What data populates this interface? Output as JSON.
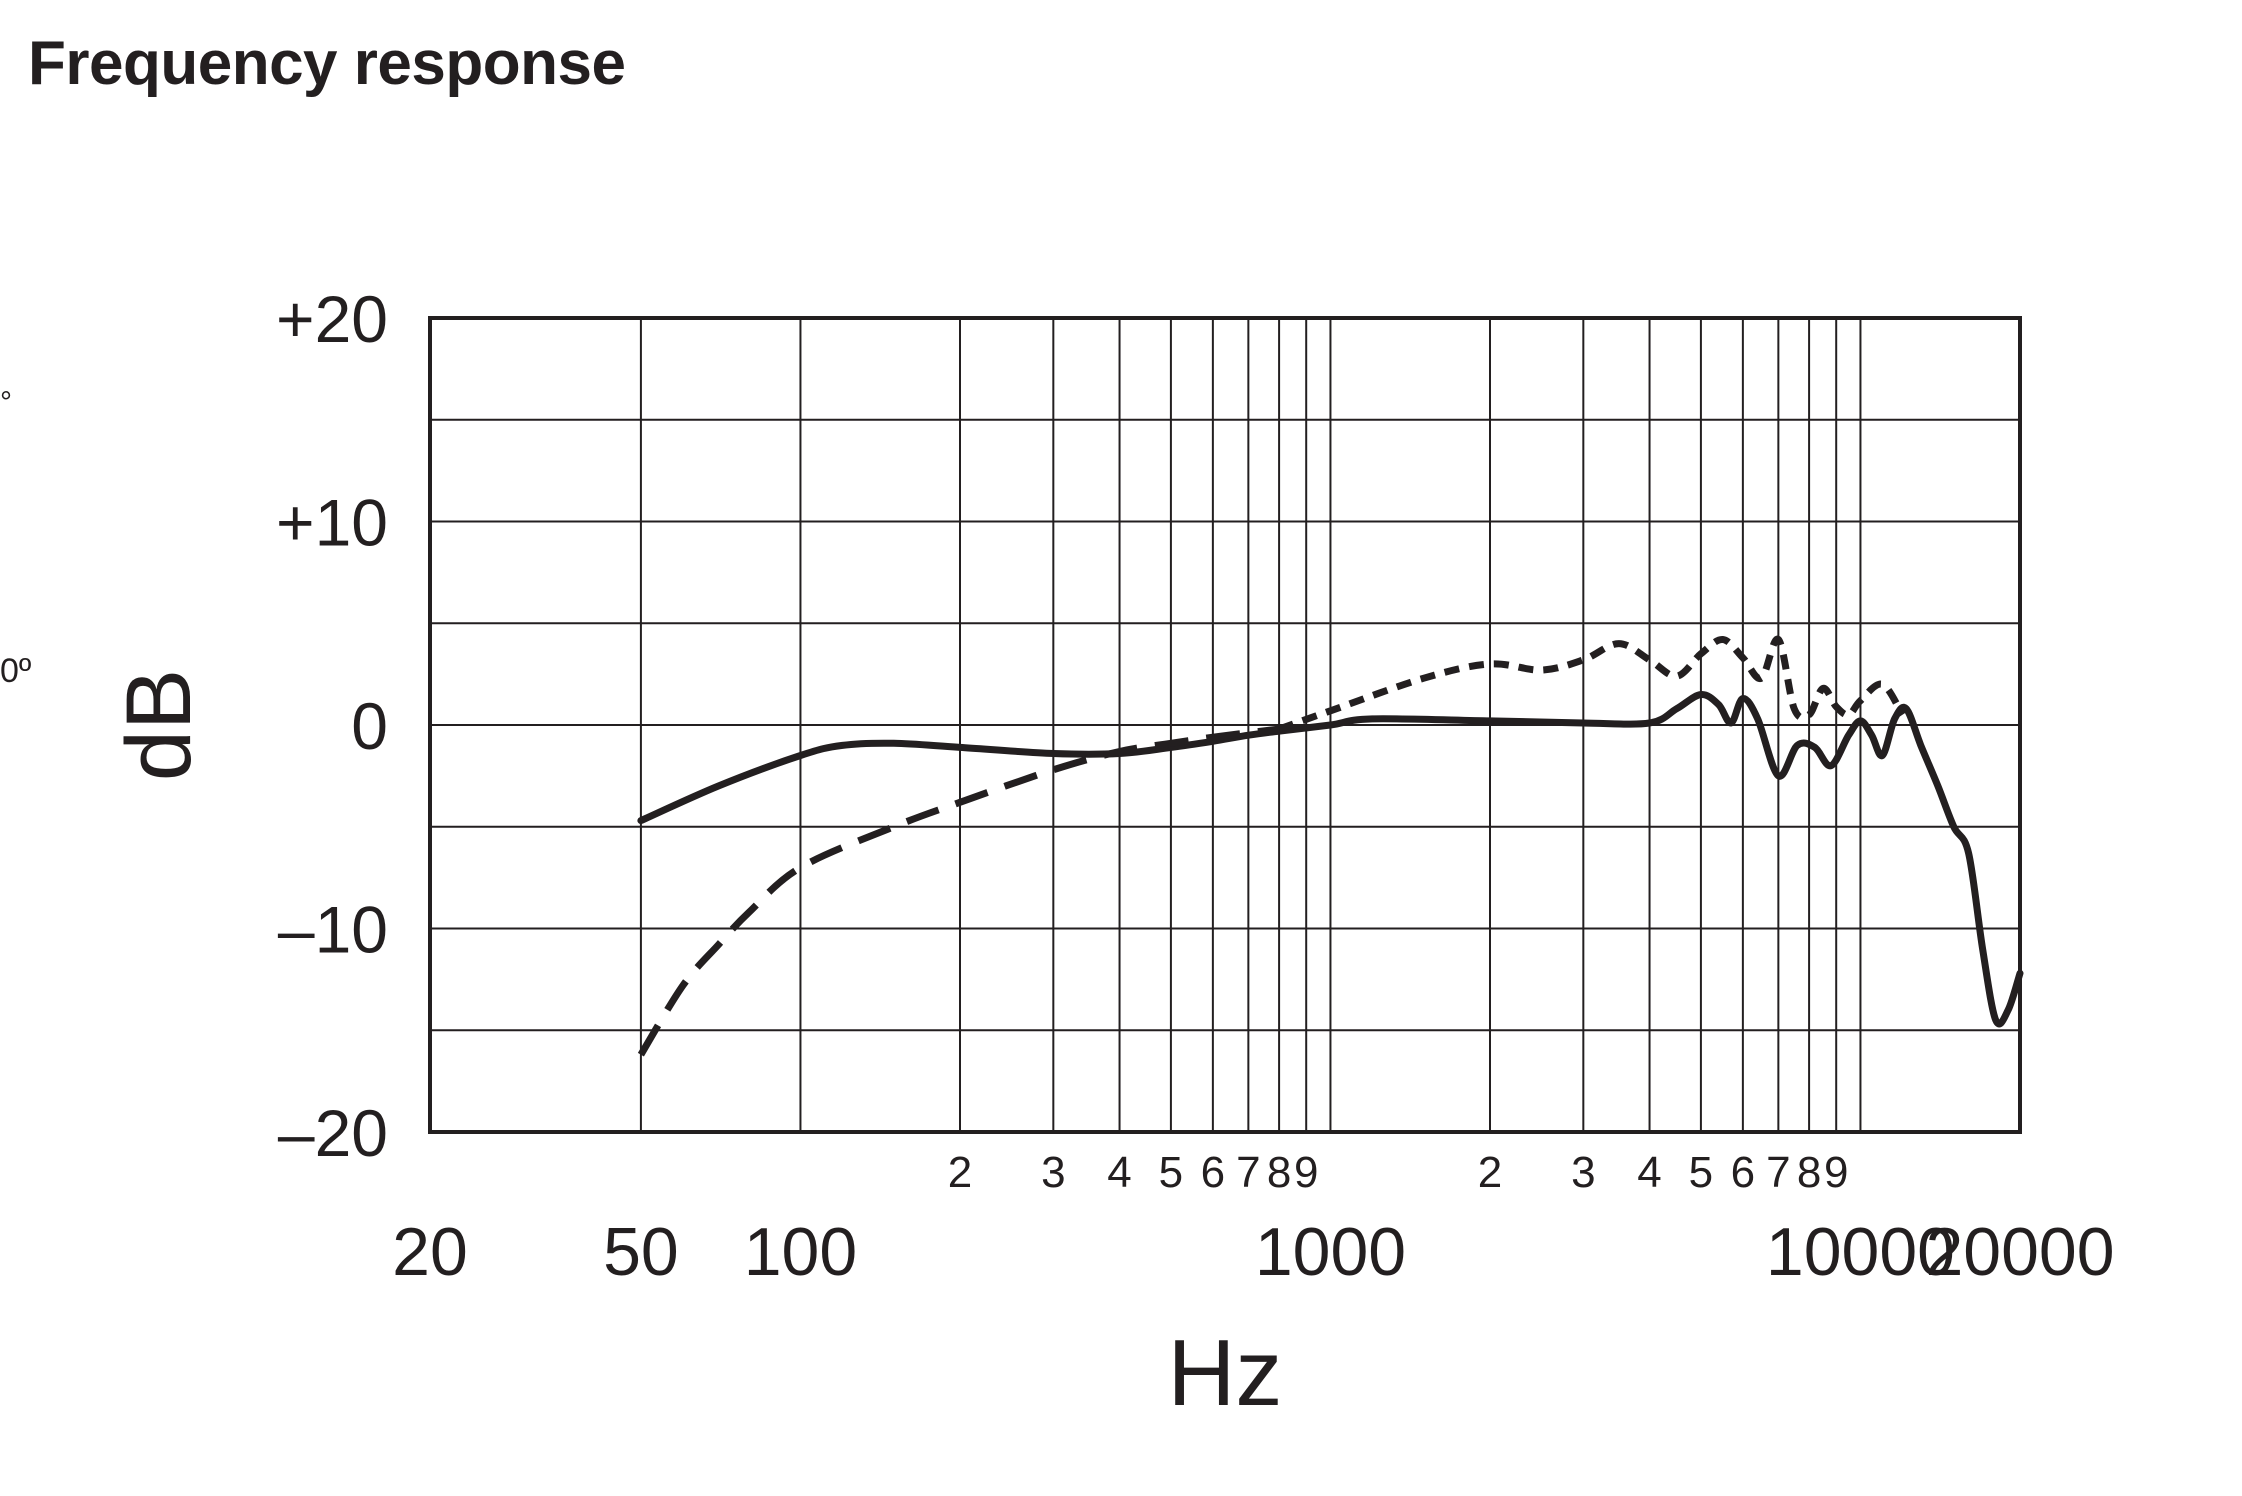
{
  "page": {
    "title": "Frequency response",
    "edge_fragments": [
      "°",
      "0º"
    ]
  },
  "chart_data": {
    "type": "line",
    "title": "Frequency response",
    "xlabel": "Hz",
    "ylabel": "dB",
    "x_scale": "log",
    "xlim": [
      20,
      20000
    ],
    "ylim": [
      -20,
      20
    ],
    "grid": true,
    "y_ticks": [
      {
        "value": 20,
        "label": "+20"
      },
      {
        "value": 10,
        "label": "+10"
      },
      {
        "value": 0,
        "label": "0"
      },
      {
        "value": -10,
        "label": "–10"
      },
      {
        "value": -20,
        "label": "–20"
      }
    ],
    "y_grid_lines": [
      20,
      15,
      10,
      5,
      0,
      -5,
      -10,
      -15,
      -20
    ],
    "x_major_ticks": [
      {
        "value": 20,
        "label": "20"
      },
      {
        "value": 50,
        "label": "50"
      },
      {
        "value": 100,
        "label": "100"
      },
      {
        "value": 1000,
        "label": "1000"
      },
      {
        "value": 10000,
        "label": "10000"
      },
      {
        "value": 20000,
        "label": "20000"
      }
    ],
    "x_minor_ticks": [
      {
        "value": 200,
        "label": "2"
      },
      {
        "value": 300,
        "label": "3"
      },
      {
        "value": 400,
        "label": "4"
      },
      {
        "value": 500,
        "label": "5"
      },
      {
        "value": 600,
        "label": "6"
      },
      {
        "value": 700,
        "label": "7"
      },
      {
        "value": 800,
        "label": "8"
      },
      {
        "value": 900,
        "label": "9"
      },
      {
        "value": 2000,
        "label": "2"
      },
      {
        "value": 3000,
        "label": "3"
      },
      {
        "value": 4000,
        "label": "4"
      },
      {
        "value": 5000,
        "label": "5"
      },
      {
        "value": 6000,
        "label": "6"
      },
      {
        "value": 7000,
        "label": "7"
      },
      {
        "value": 8000,
        "label": "8"
      },
      {
        "value": 9000,
        "label": "9"
      }
    ],
    "x_grid_lines": [
      50,
      100,
      200,
      300,
      400,
      500,
      600,
      700,
      800,
      900,
      1000,
      2000,
      3000,
      4000,
      5000,
      6000,
      7000,
      8000,
      9000,
      10000
    ],
    "series": [
      {
        "style": "solid",
        "points": [
          [
            50,
            -4.7
          ],
          [
            70,
            -3.0
          ],
          [
            100,
            -1.5
          ],
          [
            120,
            -1.0
          ],
          [
            150,
            -0.9
          ],
          [
            200,
            -1.1
          ],
          [
            300,
            -1.4
          ],
          [
            400,
            -1.4
          ],
          [
            500,
            -1.1
          ],
          [
            600,
            -0.8
          ],
          [
            700,
            -0.5
          ],
          [
            800,
            -0.3
          ],
          [
            1000,
            0.0
          ],
          [
            1200,
            0.3
          ],
          [
            2000,
            0.2
          ],
          [
            3000,
            0.1
          ],
          [
            4000,
            0.1
          ],
          [
            4500,
            0.8
          ],
          [
            5000,
            1.5
          ],
          [
            5400,
            1.0
          ],
          [
            5700,
            0.1
          ],
          [
            6000,
            1.3
          ],
          [
            6400,
            0.3
          ],
          [
            7000,
            -2.5
          ],
          [
            7600,
            -1.0
          ],
          [
            8200,
            -1.1
          ],
          [
            8800,
            -2.0
          ],
          [
            9500,
            -0.5
          ],
          [
            10000,
            0.2
          ],
          [
            10500,
            -0.5
          ],
          [
            11000,
            -1.5
          ],
          [
            11600,
            0.3
          ],
          [
            12200,
            0.8
          ],
          [
            13000,
            -1.0
          ],
          [
            14000,
            -3.0
          ],
          [
            15000,
            -5.0
          ],
          [
            16000,
            -6.3
          ],
          [
            17000,
            -11.0
          ],
          [
            18000,
            -14.5
          ],
          [
            19000,
            -14.0
          ],
          [
            20000,
            -12.2
          ]
        ]
      },
      {
        "style": "dashed",
        "points": [
          [
            50,
            -16.2
          ],
          [
            60,
            -12.8
          ],
          [
            70,
            -10.8
          ],
          [
            80,
            -9.2
          ],
          [
            100,
            -7.0
          ],
          [
            150,
            -5.0
          ],
          [
            200,
            -3.8
          ],
          [
            300,
            -2.2
          ],
          [
            400,
            -1.3
          ],
          [
            500,
            -0.9
          ],
          [
            600,
            -0.6
          ],
          [
            800,
            -0.2
          ]
        ]
      },
      {
        "style": "dotted",
        "points": [
          [
            800,
            -0.2
          ],
          [
            1000,
            0.7
          ],
          [
            1500,
            2.3
          ],
          [
            2000,
            3.0
          ],
          [
            2500,
            2.7
          ],
          [
            3000,
            3.2
          ],
          [
            3500,
            4.0
          ],
          [
            4000,
            3.2
          ],
          [
            4500,
            2.4
          ],
          [
            5000,
            3.5
          ],
          [
            5500,
            4.2
          ],
          [
            6000,
            3.3
          ],
          [
            6500,
            2.3
          ],
          [
            7000,
            4.2
          ],
          [
            7500,
            0.8
          ],
          [
            8000,
            0.5
          ],
          [
            8500,
            1.8
          ],
          [
            9000,
            0.9
          ],
          [
            9500,
            0.5
          ],
          [
            10000,
            1.2
          ],
          [
            11000,
            2.0
          ],
          [
            12000,
            0.5
          ]
        ]
      }
    ]
  }
}
